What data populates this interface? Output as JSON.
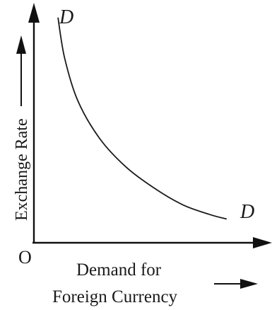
{
  "chart_data": {
    "type": "line",
    "title": "",
    "xlabel_line1": "Demand for",
    "xlabel_line2": "Foreign Currency",
    "ylabel": "Exchange Rate",
    "origin_label": "O",
    "grid": false,
    "legend": "none",
    "series": [
      {
        "name": "",
        "curve_start_label": "D",
        "curve_end_label": "D",
        "x": [
          0.11,
          0.14,
          0.2,
          0.3,
          0.42,
          0.55,
          0.68,
          0.8,
          0.88
        ],
        "y": [
          0.95,
          0.78,
          0.6,
          0.44,
          0.32,
          0.23,
          0.16,
          0.12,
          0.1
        ]
      }
    ],
    "xlim": [
      0,
      1
    ],
    "ylim": [
      0,
      1
    ],
    "colors": {
      "axis": "#111111",
      "curve": "#1a1a1a",
      "text": "#1a1a1a"
    }
  }
}
